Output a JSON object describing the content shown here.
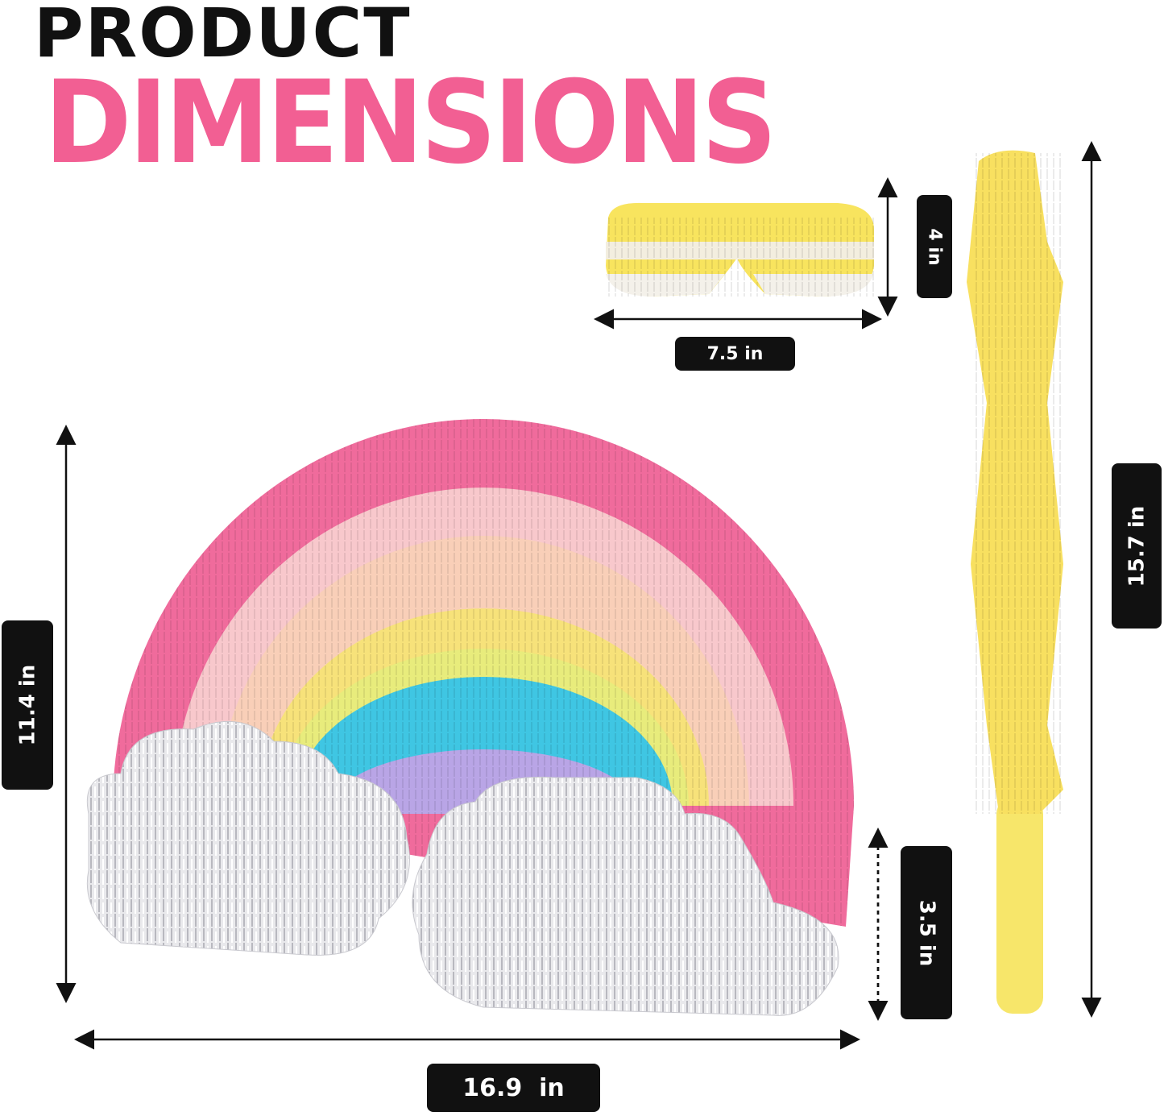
{
  "header": {
    "line1": "PRODUCT",
    "line2": "DIMENSIONS"
  },
  "colors": {
    "accent_pink": "#f25f93",
    "label_bg": "#111111",
    "stick_yellow": "#f7e66a"
  },
  "dimensions": {
    "blindfold_height": "4 in",
    "blindfold_width": "7.5 in",
    "stick_length": "15.7 in",
    "pinata_height": "11.4 in",
    "pinata_depth": "3.5 in",
    "pinata_width": "16.9  in"
  }
}
